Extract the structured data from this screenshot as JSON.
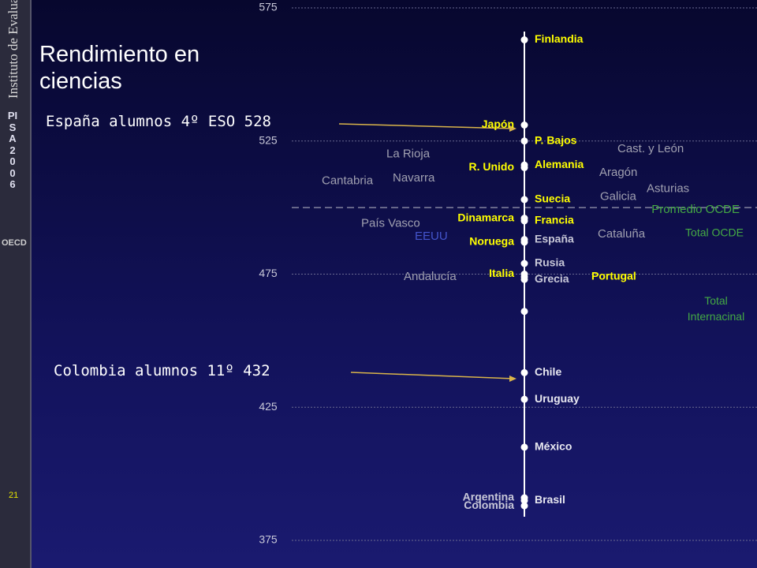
{
  "sidebar": {
    "institute": "Instituto de Evaluación",
    "program": "PISA2006",
    "organization": "OECD",
    "page": "21"
  },
  "chart_data": {
    "type": "dot",
    "title": "Rendimiento en ciencias",
    "ylim": [
      375,
      575
    ],
    "yticks": [
      375,
      425,
      475,
      525,
      575
    ],
    "grid": true,
    "categories": [
      "Finlandia",
      "Japón",
      "P. Bajos",
      "Alemania",
      "R. Unido",
      "Suecia",
      "Dinamarca",
      "Francia",
      "España",
      "Noruega",
      "Rusia",
      "Italia",
      "Portugal",
      "Grecia",
      null,
      "Chile",
      "Uruguay",
      "México",
      "Argentina",
      "Brasil",
      "Colombia"
    ],
    "values": [
      563,
      531,
      525,
      516,
      515,
      503,
      496,
      495,
      488,
      487,
      479,
      475,
      474,
      473,
      461,
      438,
      428,
      410,
      391,
      390,
      388
    ],
    "label_side": [
      "right",
      "left",
      "right",
      "right",
      "left",
      "right",
      "left",
      "right",
      "right",
      "left",
      "right",
      "left",
      "far-right",
      "right",
      "right",
      "right",
      "right",
      "right",
      "left",
      "right",
      "left"
    ],
    "label_colors": [
      "#ffff00",
      "#ffff00",
      "#ffff00",
      "#ffff00",
      "#ffff00",
      "#ffff00",
      "#ffff00",
      "#ffff00",
      "#c8c8d8",
      "#ffff00",
      "#c8c8d8",
      "#ffff00",
      "#ffff00",
      "#c8c8d8",
      "#c8c8d8",
      "#e8e8f0",
      "#e8e8f0",
      "#e8e8f0",
      "#c8c8d8",
      "#e8e8f0",
      "#c8c8d8"
    ],
    "dot_color": "#ffffff",
    "regions": [
      "La Rioja",
      "Cast. y León",
      "Aragón",
      "Navarra",
      "Cantabria",
      "Asturias",
      "Galicia",
      "País Vasco",
      "Cataluña",
      "EEUU",
      "Andalucía"
    ],
    "region_values": [
      520,
      522,
      513,
      511,
      510,
      507,
      504,
      494,
      490,
      489,
      474
    ],
    "region_colors": [
      "#a0a0b0",
      "#a0a0b0",
      "#a0a0b0",
      "#a0a0b0",
      "#a0a0b0",
      "#a0a0b0",
      "#a0a0b0",
      "#a0a0b0",
      "#a0a0b0",
      "#4455cc",
      "#a0a0b0"
    ],
    "reference": {
      "label": "Promedio OCDE",
      "value": 500,
      "color": "#44aa44"
    },
    "side_labels": [
      "Total OCDE",
      "Total Internacinal"
    ],
    "side_label_color": "#44aa44",
    "annotations": [
      "España alumnos 4º ESO 528",
      "Colombia alumnos 11º 432"
    ]
  }
}
